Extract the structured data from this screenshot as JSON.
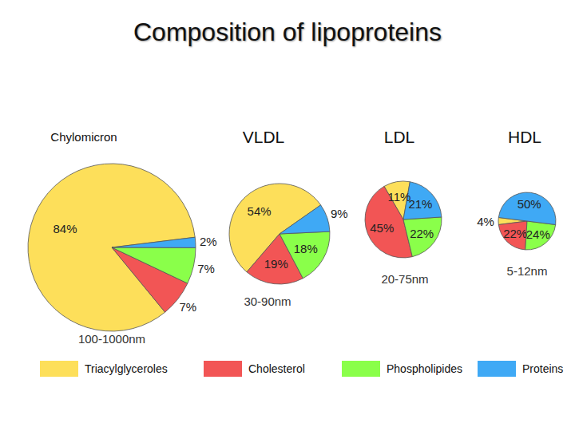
{
  "title": "Composition of lipoproteins",
  "chart_data": [
    {
      "type": "pie",
      "title": "Chylomicron",
      "annotation": "100-1000nm",
      "categories": [
        "Triacylglyceroles",
        "Cholesterol",
        "Phospholipides",
        "Proteins"
      ],
      "values": [
        84,
        7,
        7,
        2
      ],
      "value_labels": [
        "84%",
        "7%",
        "7%",
        "2%"
      ],
      "colors": [
        "#fddf5a",
        "#f25555",
        "#8aff4a",
        "#3fa9f5"
      ],
      "data_labels": true,
      "legend": "bottom"
    },
    {
      "type": "pie",
      "title": "VLDL",
      "annotation": "30-90nm",
      "categories": [
        "Triacylglyceroles",
        "Cholesterol",
        "Phospholipides",
        "Proteins"
      ],
      "values": [
        54,
        19,
        18,
        9
      ],
      "value_labels": [
        "54%",
        "19%",
        "18%",
        "9%"
      ],
      "colors": [
        "#fddf5a",
        "#f25555",
        "#8aff4a",
        "#3fa9f5"
      ],
      "data_labels": true,
      "legend": "bottom"
    },
    {
      "type": "pie",
      "title": "LDL",
      "annotation": "20-75nm",
      "categories": [
        "Triacylglyceroles",
        "Cholesterol",
        "Phospholipides",
        "Proteins"
      ],
      "values": [
        11,
        45,
        22,
        21
      ],
      "value_labels": [
        "11%",
        "45%",
        "22%",
        "21%"
      ],
      "colors": [
        "#fddf5a",
        "#f25555",
        "#8aff4a",
        "#3fa9f5"
      ],
      "data_labels": true,
      "legend": "bottom"
    },
    {
      "type": "pie",
      "title": "HDL",
      "annotation": "5-12nm",
      "categories": [
        "Triacylglyceroles",
        "Cholesterol",
        "Phospholipides",
        "Proteins"
      ],
      "values": [
        4,
        22,
        24,
        50
      ],
      "value_labels": [
        "4%",
        "22%",
        "24%",
        "50%"
      ],
      "colors": [
        "#fddf5a",
        "#f25555",
        "#8aff4a",
        "#3fa9f5"
      ],
      "data_labels": true,
      "legend": "bottom"
    }
  ]
}
